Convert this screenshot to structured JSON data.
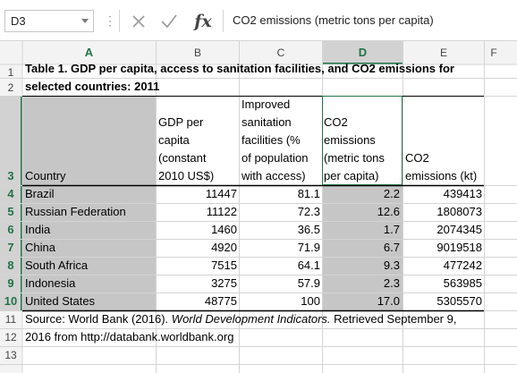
{
  "name_box": {
    "value": "D3"
  },
  "formula_bar": {
    "cancel_icon": "close-icon",
    "enter_icon": "check-icon",
    "fx_label": "fx",
    "content": "CO2 emissions (metric tons per capita)"
  },
  "columns": [
    "A",
    "B",
    "C",
    "D",
    "E",
    "F"
  ],
  "selected_column": "D",
  "rows": [
    "1",
    "2",
    "3",
    "4",
    "5",
    "6",
    "7",
    "8",
    "9",
    "10",
    "11",
    "12",
    "13"
  ],
  "selected_rows": [
    "3",
    "4",
    "5",
    "6",
    "7",
    "8",
    "9",
    "10"
  ],
  "sheet": {
    "title_line1": "Table 1.  GDP per capita, access to sanitation facilities, and CO2 emissions for",
    "title_line2": "selected countries: 2011",
    "headers": {
      "country": "Country",
      "gdp": [
        "GDP per",
        "capita",
        "(constant",
        "2010 US$)"
      ],
      "sanitation": [
        "Improved",
        "sanitation",
        "facilities (%",
        "of population",
        "with access)"
      ],
      "co2_per_capita": [
        "CO2",
        "emissions",
        "(metric tons",
        "per capita)"
      ],
      "co2_kt": [
        "CO2",
        "emissions (kt)"
      ]
    },
    "data": [
      {
        "country": "Brazil",
        "gdp": "11447",
        "sanitation": "81.1",
        "co2pc": "2.2",
        "co2kt": "439413"
      },
      {
        "country": "Russian Federation",
        "gdp": "11122",
        "sanitation": "72.3",
        "co2pc": "12.6",
        "co2kt": "1808073"
      },
      {
        "country": "India",
        "gdp": "1460",
        "sanitation": "36.5",
        "co2pc": "1.7",
        "co2kt": "2074345"
      },
      {
        "country": "China",
        "gdp": "4920",
        "sanitation": "71.9",
        "co2pc": "6.7",
        "co2kt": "9019518"
      },
      {
        "country": "South Africa",
        "gdp": "7515",
        "sanitation": "64.1",
        "co2pc": "9.3",
        "co2kt": "477242"
      },
      {
        "country": "Indonesia",
        "gdp": "3275",
        "sanitation": "57.9",
        "co2pc": "2.3",
        "co2kt": "563985"
      },
      {
        "country": "United States",
        "gdp": "48775",
        "sanitation": "100",
        "co2pc": "17.0",
        "co2kt": "5305570"
      }
    ],
    "source_line1_a": "Source: World Bank (2016).  ",
    "source_line1_b": "World Development Indicators.",
    "source_line1_c": "  Retrieved September 9,",
    "source_line2": "2016 from http://databank.worldbank.org"
  },
  "colors": {
    "selection_fill": "#c6c6c6",
    "header_bg": "#f3f3f3",
    "selected_header_bg": "#d2d2d2",
    "accent": "#217346",
    "gridline": "#d4d4d4"
  }
}
